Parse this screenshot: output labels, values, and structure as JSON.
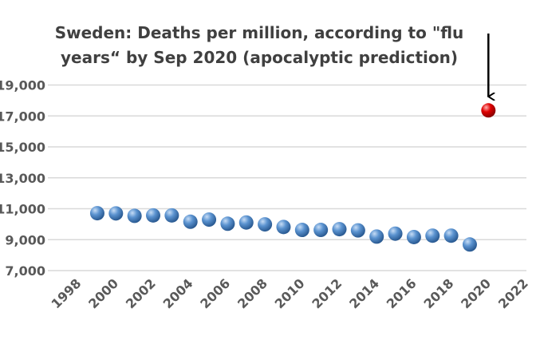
{
  "chart_data": {
    "type": "scatter",
    "title": "Sweden: Deaths per million, according to \"flu years“ by Sep 2020 (apocalyptic prediction)",
    "xlabel": "",
    "ylabel": "",
    "xlim": [
      1998,
      2022
    ],
    "ylim": [
      7000,
      19000
    ],
    "xticks": [
      1998,
      2000,
      2002,
      2004,
      2006,
      2008,
      2010,
      2012,
      2014,
      2016,
      2018,
      2020,
      2022
    ],
    "yticks": [
      7000,
      9000,
      11000,
      13000,
      15000,
      17000,
      19000
    ],
    "ytick_labels": [
      "7,000",
      "9,000",
      "11,000",
      "13,000",
      "15,000",
      "17,000",
      "19,000"
    ],
    "grid": "horizontal",
    "series": [
      {
        "color": "#4f81bd",
        "x": [
          1999,
          2000,
          2001,
          2002,
          2003,
          2004,
          2005,
          2006,
          2007,
          2008,
          2009,
          2010,
          2011,
          2012,
          2013,
          2014,
          2015,
          2016,
          2017,
          2018,
          2019
        ],
        "y": [
          10710,
          10700,
          10540,
          10570,
          10570,
          10160,
          10300,
          10030,
          10110,
          9990,
          9820,
          9630,
          9630,
          9680,
          9600,
          9200,
          9390,
          9170,
          9260,
          9260,
          8690
        ]
      },
      {
        "color": "#e00000",
        "x": [
          2020
        ],
        "y": [
          17360
        ]
      }
    ],
    "annotations": [
      {
        "type": "arrow",
        "x": 2020,
        "direction": "down",
        "color": "#000000"
      }
    ]
  }
}
